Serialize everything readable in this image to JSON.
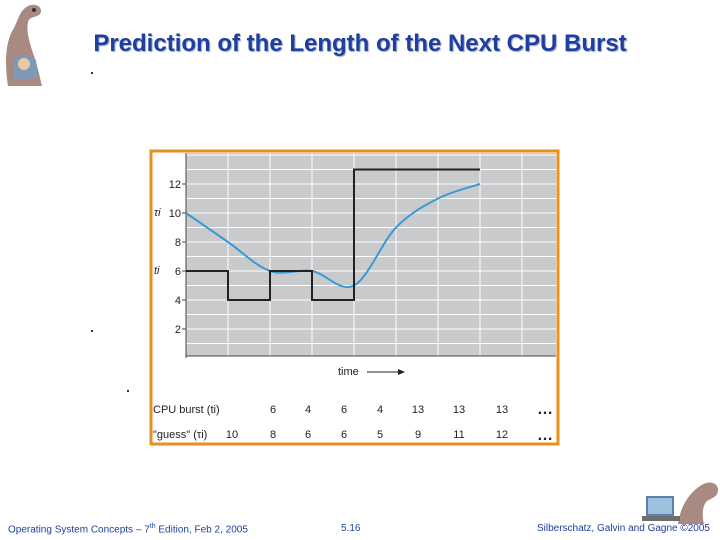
{
  "slide": {
    "title": "Prediction of the Length of the Next CPU Burst",
    "footer": {
      "left_a": "Operating System Concepts – 7",
      "left_sup": "th",
      "left_b": " Edition, Feb 2, 2005",
      "page": "5.16",
      "right": "Silberschatz, Galvin and Gagne ©2005"
    }
  },
  "chart_data": {
    "type": "line",
    "ylim": [
      0,
      14
    ],
    "y_ticks": [
      "2",
      "4",
      "6",
      "8",
      "10",
      "12"
    ],
    "y_axis_labels": [
      "τi",
      "ti"
    ],
    "time_label": "time",
    "ellipsis": "…",
    "series": [
      {
        "name": "CPU burst (ti)",
        "color": "#222222",
        "step": true,
        "values": [
          6,
          4,
          6,
          4,
          13,
          13,
          13
        ]
      },
      {
        "name": "\"guess\" (τi)",
        "color": "#3b9ad6",
        "smooth": true,
        "values": [
          10,
          8,
          6,
          6,
          5,
          9,
          11,
          12
        ]
      }
    ],
    "table": [
      {
        "label": "CPU burst (ti)",
        "values": [
          "6",
          "4",
          "6",
          "4",
          "13",
          "13",
          "13"
        ]
      },
      {
        "label": "\"guess\" (τi)",
        "values": [
          "10",
          "8",
          "6",
          "6",
          "5",
          "9",
          "11",
          "12"
        ]
      }
    ],
    "colors": {
      "grid_bg": "#c8cacc",
      "grid_line": "#ffffff",
      "frame": "#e8901c",
      "axis": "#444444"
    }
  }
}
